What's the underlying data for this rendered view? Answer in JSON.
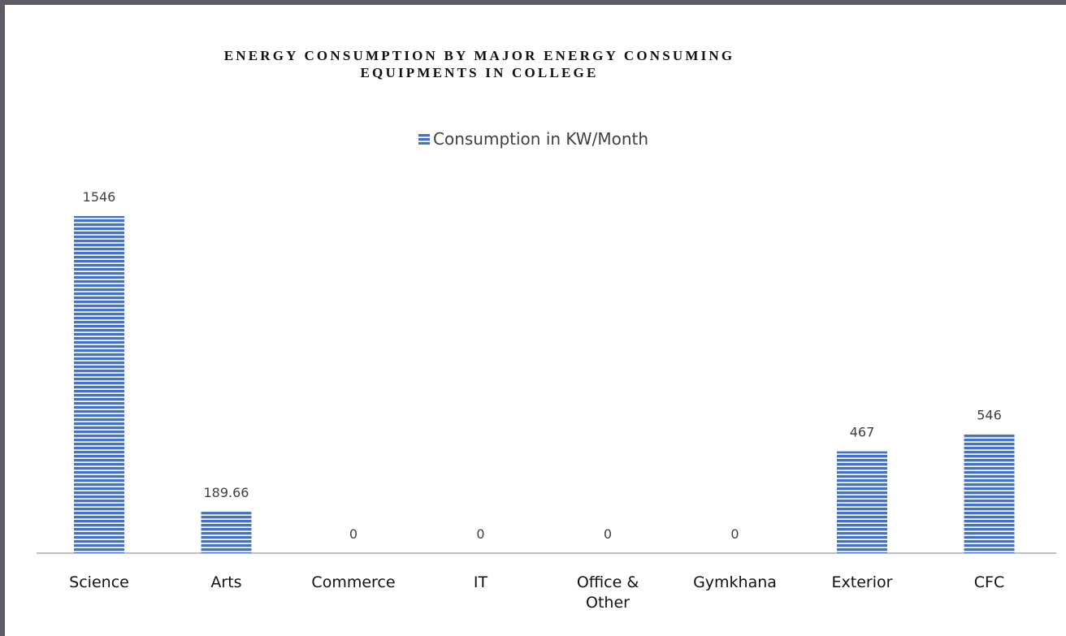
{
  "chart_data": {
    "type": "bar",
    "title": "ENERGY CONSUMPTION BY MAJOR ENERGY CONSUMING EQUIPMENTS IN COLLEGE",
    "categories": [
      "Science",
      "Arts",
      "Commerce",
      "IT",
      "Office & Other",
      "Gymkhana",
      "Exterior",
      "CFC"
    ],
    "series": [
      {
        "name": "Consumption in KW/Month",
        "color": "#4472c4",
        "values": [
          1546,
          189.66,
          0,
          0,
          0,
          0,
          467,
          546
        ]
      }
    ],
    "legend": "top"
  }
}
